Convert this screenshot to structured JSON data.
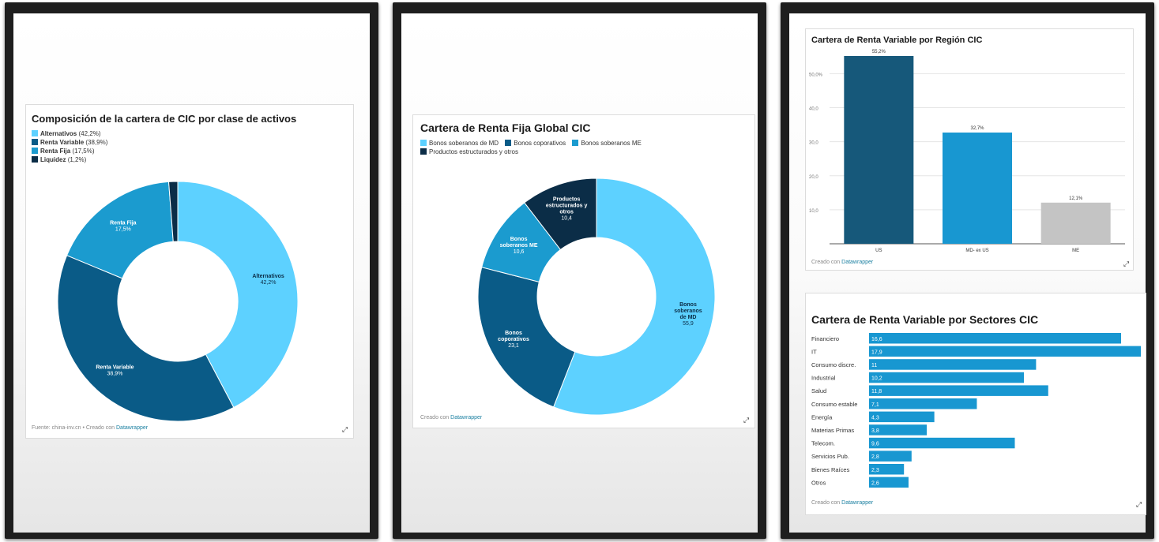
{
  "palette": {
    "light": "#5dd1ff",
    "dark": "#0a5b87",
    "mid": "#1b9bcf",
    "navy": "#0b2d47",
    "gray": "#c4c4c4",
    "teal_dark": "#16587a",
    "bar_blue": "#1897d1"
  },
  "icons": {
    "resize": "resize-arrow-icon"
  },
  "chart_data": [
    {
      "id": "composicion",
      "type": "pie",
      "title": "Composición de la cartera de CIC por clase de activos",
      "legend": [
        {
          "name": "Alternativos",
          "pct": "(42,2%)",
          "color": "#5dd1ff"
        },
        {
          "name": "Renta Variable",
          "pct": "(38,9%)",
          "color": "#0a5b87"
        },
        {
          "name": "Renta Fija",
          "pct": "(17,5%)",
          "color": "#1b9bcf"
        },
        {
          "name": "Liquidez",
          "pct": "(1,2%)",
          "color": "#0b2d47"
        }
      ],
      "slices": [
        {
          "name": "Alternativos",
          "value": 42.2,
          "color": "#5dd1ff",
          "label": "Alternativos",
          "value_label": "42,2%",
          "label_color": "#0b2d47"
        },
        {
          "name": "Renta Variable",
          "value": 38.9,
          "color": "#0a5b87",
          "label": "Renta Variable",
          "value_label": "38,9%",
          "label_color": "#ffffff"
        },
        {
          "name": "Renta Fija",
          "value": 17.5,
          "color": "#1b9bcf",
          "label": "Renta Fija",
          "value_label": "17,5%",
          "label_color": "#ffffff"
        },
        {
          "name": "Liquidez",
          "value": 1.2,
          "color": "#0b2d47",
          "label": "",
          "value_label": "",
          "label_color": "#ffffff"
        }
      ],
      "footer_prefix": "Fuente: china-inv.cn • Creado con ",
      "footer_link": "Datawrapper"
    },
    {
      "id": "renta_fija",
      "type": "pie",
      "title": "Cartera de Renta Fija Global CIC",
      "legend": [
        {
          "name": "Bonos soberanos de MD",
          "pct": "",
          "color": "#5dd1ff"
        },
        {
          "name": "Bonos coporativos",
          "pct": "",
          "color": "#0a5b87"
        },
        {
          "name": "Bonos soberanos ME",
          "pct": "",
          "color": "#1b9bcf"
        },
        {
          "name": "Productos estructurados y otros",
          "pct": "",
          "color": "#0b2d47"
        }
      ],
      "slices": [
        {
          "name": "Bonos soberanos de MD",
          "value": 55.9,
          "color": "#5dd1ff",
          "label": "Bonos|soberanos|de MD",
          "value_label": "55,9",
          "label_color": "#0b2d47"
        },
        {
          "name": "Bonos coporativos",
          "value": 23.1,
          "color": "#0a5b87",
          "label": "Bonos|coporativos",
          "value_label": "23,1",
          "label_color": "#ffffff"
        },
        {
          "name": "Bonos soberanos ME",
          "value": 10.6,
          "color": "#1b9bcf",
          "label": "Bonos|soberanos ME",
          "value_label": "10,6",
          "label_color": "#ffffff"
        },
        {
          "name": "Productos estructurados y otros",
          "value": 10.4,
          "color": "#0b2d47",
          "label": "Productos|estructurados y|otros",
          "value_label": "10,4",
          "label_color": "#ffffff"
        }
      ],
      "footer_prefix": "Creado con ",
      "footer_link": "Datawrapper"
    },
    {
      "id": "region",
      "type": "bar",
      "title": "Cartera de Renta Variable por Región CIC",
      "categories": [
        "US",
        "MD- ex US",
        "ME"
      ],
      "values": [
        55.2,
        32.7,
        12.1
      ],
      "value_labels": [
        "55,2%",
        "32,7%",
        "12,1%"
      ],
      "colors": [
        "#16587a",
        "#1897d1",
        "#c4c4c4"
      ],
      "yticks": [
        10,
        20,
        30,
        40,
        50
      ],
      "ytick_labels": [
        "10,0",
        "20,0",
        "30,0",
        "40,0",
        "50,0%"
      ],
      "ylim": [
        0,
        55.2
      ],
      "footer_prefix": "Creado con ",
      "footer_link": "Datawrapper"
    },
    {
      "id": "sectores",
      "type": "bar",
      "orientation": "horizontal",
      "title": "Cartera de Renta Variable por Sectores CIC",
      "categories": [
        "Financiero",
        "IT",
        "Consumo discre.",
        "Industrial",
        "Salud",
        "Consumo estable",
        "Energía",
        "Materias Primas",
        "Telecom.",
        "Servicios Pub.",
        "Bienes Raíces",
        "Otros"
      ],
      "values": [
        16.6,
        17.9,
        11,
        10.2,
        11.8,
        7.1,
        4.3,
        3.8,
        9.6,
        2.8,
        2.3,
        2.6
      ],
      "value_labels": [
        "16,6",
        "17,9",
        "11",
        "10,2",
        "11,8",
        "7,1",
        "4,3",
        "3,8",
        "9,6",
        "2,8",
        "2,3",
        "2,6"
      ],
      "color": "#1897d1",
      "xlim": [
        0,
        17.9
      ],
      "footer_prefix": "Creado con ",
      "footer_link": "Datawrapper"
    }
  ]
}
